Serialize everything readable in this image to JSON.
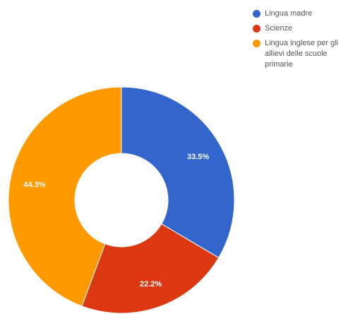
{
  "chart_data": {
    "type": "pie",
    "donut": true,
    "title": "",
    "legend_position": "top-right",
    "slices": [
      {
        "label": "Lingua madre",
        "value": 33.5,
        "display": "33.5%",
        "color": "#3366cc"
      },
      {
        "label": "Scienze",
        "value": 22.2,
        "display": "22.2%",
        "color": "#dc3912"
      },
      {
        "label": "Lingua inglese per gli allievi delle scuole primarie",
        "value": 44.3,
        "display": "44.3%",
        "color": "#ff9900"
      }
    ]
  }
}
